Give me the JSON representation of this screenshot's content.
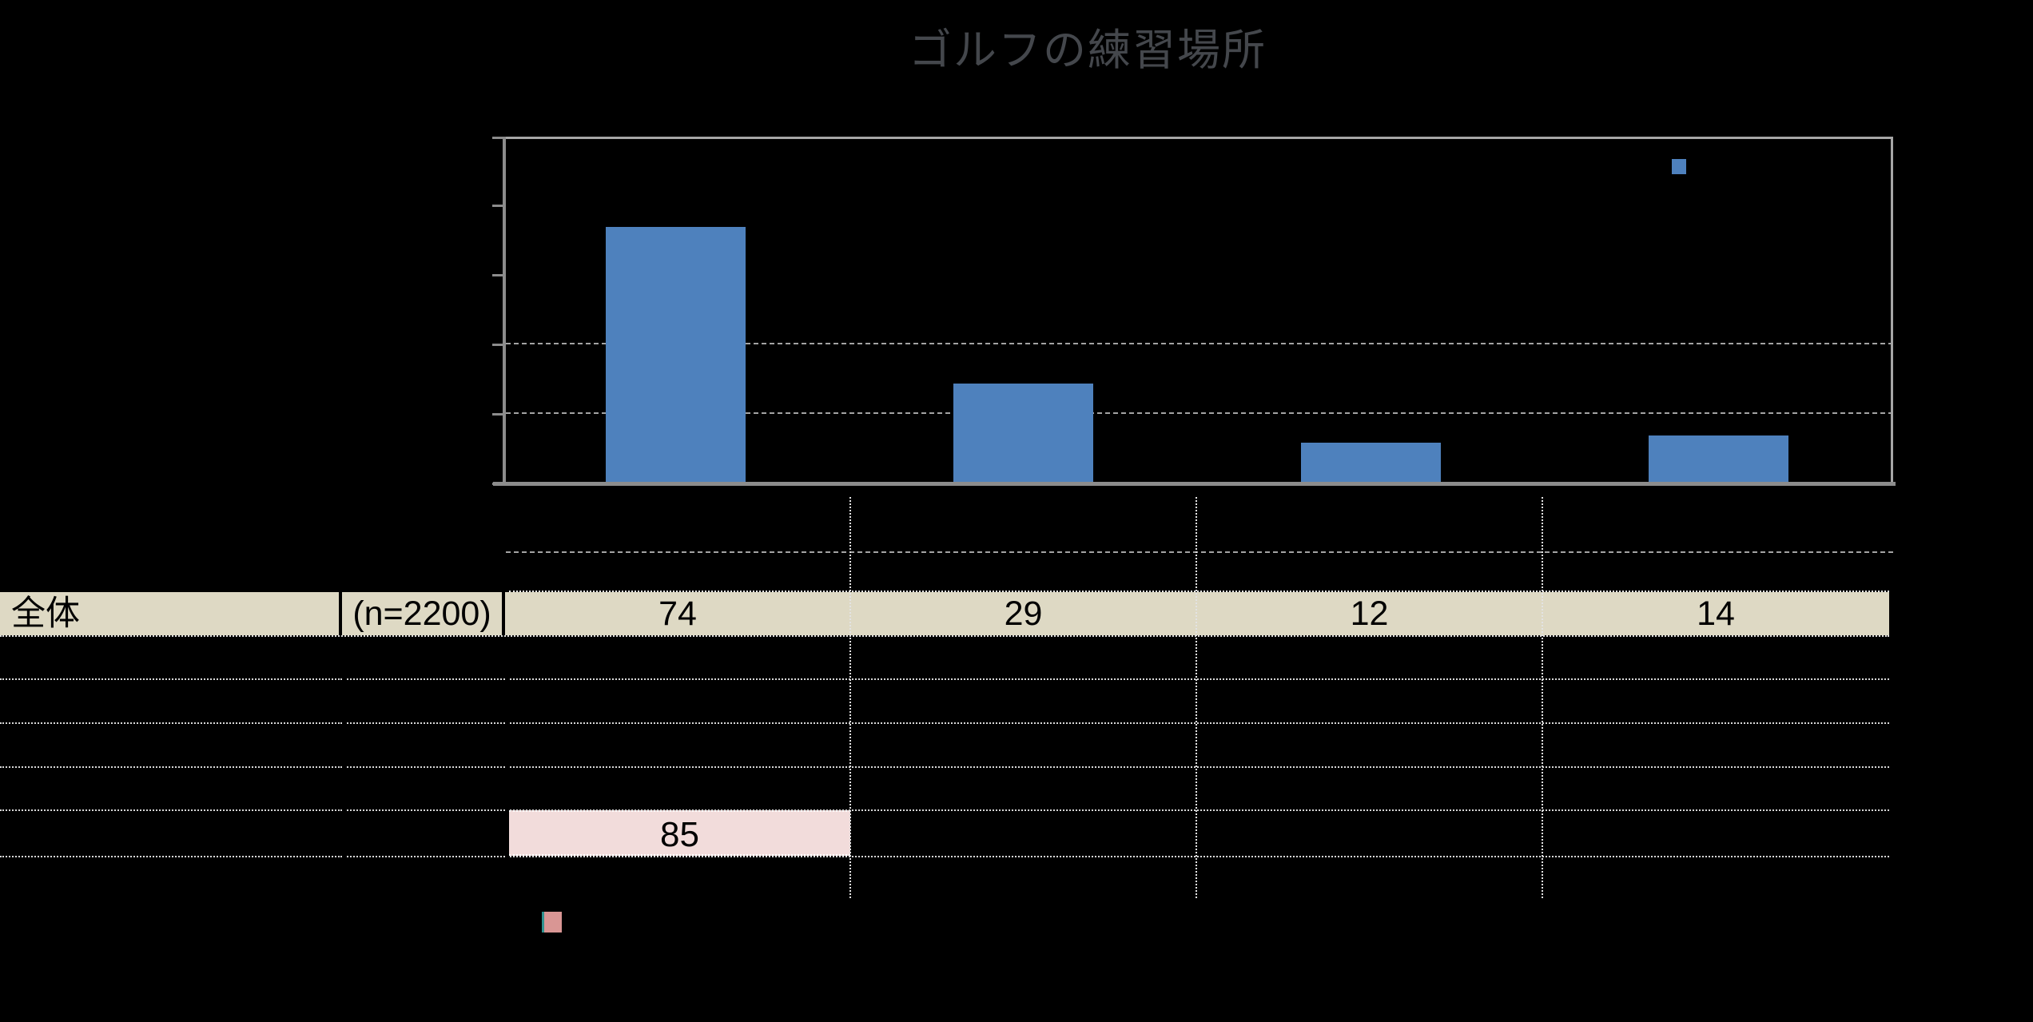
{
  "title": "ゴルフの練習場所",
  "chart_data": {
    "type": "bar",
    "title": "ゴルフの練習場所",
    "categories": [
      "",
      "",
      "",
      ""
    ],
    "values": [
      74,
      29,
      12,
      14
    ],
    "xlabel": "",
    "ylabel": "",
    "ylim": [
      0,
      100
    ],
    "ytick_interval": 20,
    "grid": "horizontal, dashed gray",
    "legend_position": "top-right marker only",
    "bar_color": "#4E81BD",
    "plot_border_color": "#A6A6A6",
    "axis_color": "#8C8C8C"
  },
  "table": {
    "header_bg": "#DED9C4",
    "row": {
      "label": "全体",
      "n": "(n=2200)",
      "values": [
        "74",
        "29",
        "12",
        "14"
      ]
    },
    "empty_rows": 4,
    "highlight": {
      "value": "85",
      "bg": "#F2DCDB"
    }
  },
  "legend_markers": {
    "series1_color": "#4E81BD",
    "series2_color": "#D99694",
    "series2_edge": "#2F9390"
  },
  "colors": {
    "background": "#000000",
    "title_text": "#44474C",
    "table_text": "#000000",
    "divider_lines": "#E3E3E3"
  }
}
